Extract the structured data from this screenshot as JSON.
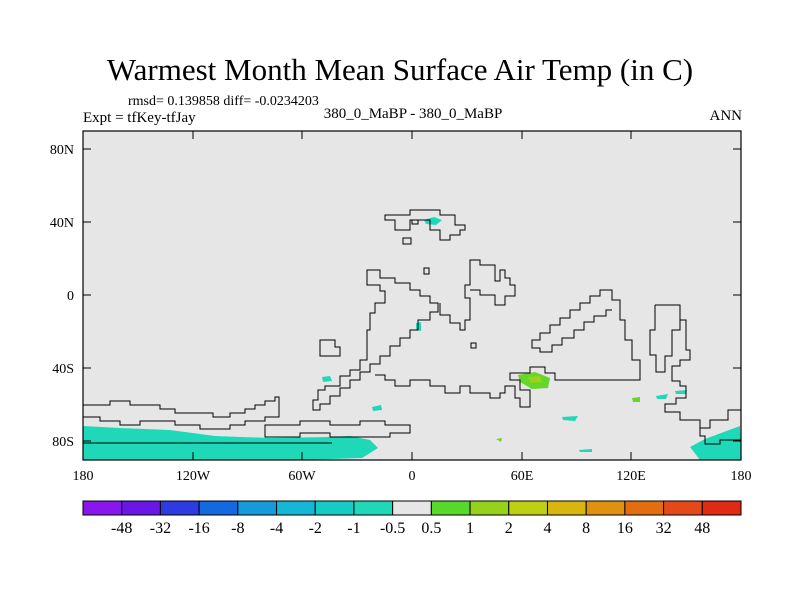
{
  "title": "Warmest Month Mean Surface Air Temp (in C)",
  "stats_line": "rmsd= 0.139858 diff= -0.0234203",
  "expt_line": "Expt = tfKey-tfJay",
  "case_line": "380_0_MaBP - 380_0_MaBP",
  "period": "ANN",
  "colors": {
    "land_fill": "#e6e6e6",
    "coastline": "#000000",
    "anomaly_neg": "#1ed8b8",
    "anomaly_pos": "#66d62a"
  },
  "map": {
    "lon_ticks": [
      "180",
      "120W",
      "60W",
      "0",
      "60E",
      "120E",
      "180"
    ],
    "lat_ticks": [
      "80N",
      "40N",
      "0",
      "40S",
      "80S"
    ]
  },
  "colorbar": {
    "labels": [
      "-48",
      "-32",
      "-16",
      "-8",
      "-4",
      "-2",
      "-1",
      "-0.5",
      "0.5",
      "1",
      "2",
      "4",
      "8",
      "16",
      "32",
      "48"
    ],
    "colors": [
      "#8a16ee",
      "#6a16e4",
      "#2c3ce0",
      "#1469e0",
      "#159bdc",
      "#14b7d6",
      "#16cbc4",
      "#1ed8b8",
      "#e6e6e6",
      "#58d82c",
      "#96d21c",
      "#bfd014",
      "#d8b60f",
      "#df920f",
      "#e26e0f",
      "#e4491a",
      "#e12a14"
    ]
  }
}
